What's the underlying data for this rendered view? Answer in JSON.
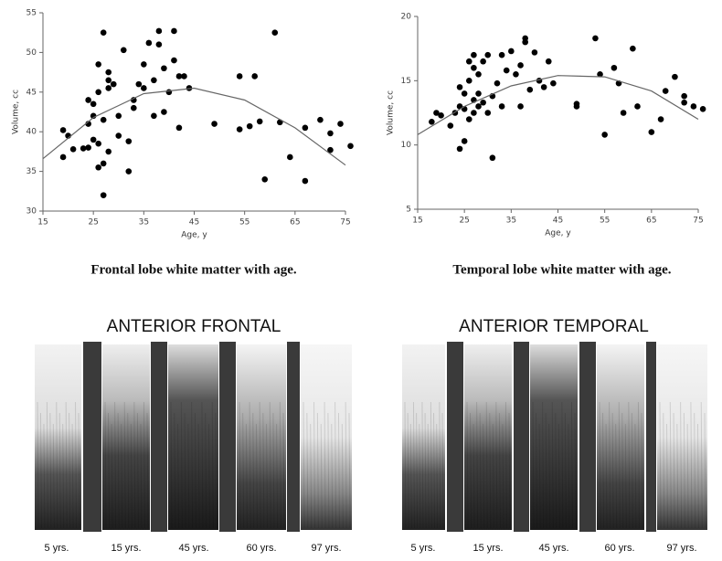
{
  "chart_data": [
    {
      "type": "scatter",
      "caption": "Frontal lobe white matter with age.",
      "x_label": "Age, y",
      "y_label": "Volume, cc",
      "xlim": [
        15,
        75
      ],
      "xticks": [
        15,
        25,
        35,
        45,
        55,
        65,
        75
      ],
      "ylim": [
        30,
        55
      ],
      "yticks": [
        30,
        35,
        40,
        45,
        50,
        55
      ],
      "series": [
        {
          "color": "#000000",
          "x": [
            19,
            19,
            20,
            21,
            23,
            24,
            24,
            24,
            25,
            25,
            25,
            26,
            26,
            26,
            26,
            27,
            27,
            27,
            27,
            28,
            28,
            28,
            28,
            29,
            30,
            30,
            31,
            32,
            32,
            33,
            33,
            34,
            35,
            35,
            36,
            37,
            37,
            38,
            38,
            39,
            39,
            40,
            41,
            41,
            42,
            42,
            43,
            44,
            49,
            54,
            54,
            56,
            57,
            58,
            59,
            61,
            62,
            64,
            67,
            67,
            70,
            72,
            72,
            74,
            76
          ],
          "values": [
            40.2,
            36.8,
            39.5,
            37.8,
            37.9,
            38,
            41,
            44,
            43.5,
            39,
            42,
            48.5,
            45,
            35.5,
            38.5,
            52.5,
            32,
            36,
            41.5,
            47.5,
            46.5,
            45.5,
            37.5,
            46,
            39.5,
            42,
            50.3,
            35,
            38.8,
            43,
            44,
            46,
            45.5,
            48.5,
            51.2,
            42,
            46.5,
            52.7,
            51,
            42.5,
            48,
            45,
            52.7,
            49,
            40.5,
            47,
            47,
            45.5,
            41,
            40.3,
            47,
            40.7,
            47,
            41.3,
            34,
            52.5,
            41.2,
            36.8,
            40.5,
            33.8,
            41.5,
            37.7,
            39.8,
            41,
            38.2
          ]
        },
        {
          "color": "#666666",
          "line": true,
          "x": [
            15,
            25,
            35,
            45,
            55,
            65,
            75
          ],
          "values": [
            36.6,
            41.8,
            44.8,
            45.5,
            44.0,
            40.5,
            35.8
          ]
        }
      ]
    },
    {
      "type": "scatter",
      "caption": "Temporal lobe white matter with age.",
      "x_label": "Age, y",
      "y_label": "Volume, cc",
      "xlim": [
        15,
        75
      ],
      "xticks": [
        15,
        25,
        35,
        45,
        55,
        65,
        75
      ],
      "ylim": [
        5,
        20
      ],
      "yticks": [
        5,
        10,
        15,
        20
      ],
      "series": [
        {
          "color": "#000000",
          "x": [
            18,
            19,
            20,
            22,
            23,
            24,
            24,
            24,
            25,
            25,
            25,
            26,
            26,
            26,
            27,
            27,
            27,
            27,
            28,
            28,
            28,
            29,
            29,
            30,
            30,
            31,
            31,
            32,
            33,
            33,
            34,
            35,
            36,
            37,
            37,
            38,
            38,
            39,
            40,
            41,
            42,
            43,
            44,
            49,
            49,
            53,
            54,
            55,
            57,
            58,
            59,
            61,
            62,
            65,
            67,
            68,
            70,
            72,
            72,
            74,
            76
          ],
          "values": [
            11.8,
            12.5,
            12.3,
            11.5,
            12.5,
            9.7,
            13,
            14.5,
            10.3,
            12.8,
            14,
            12,
            15,
            16.5,
            13.5,
            12.5,
            16,
            17,
            13,
            15.5,
            14,
            13.3,
            16.5,
            12.5,
            17,
            9,
            13.8,
            14.8,
            17,
            13,
            15.8,
            17.3,
            15.5,
            16.2,
            13,
            18.3,
            18,
            14.3,
            17.2,
            15,
            14.5,
            16.5,
            14.8,
            13.2,
            13,
            18.3,
            15.5,
            10.8,
            16,
            14.8,
            12.5,
            17.5,
            13,
            11,
            12,
            14.2,
            15.3,
            13.8,
            13.3,
            13,
            12.8
          ]
        },
        {
          "color": "#666666",
          "line": true,
          "x": [
            15,
            25,
            35,
            45,
            55,
            65,
            75
          ],
          "values": [
            10.8,
            13.0,
            14.6,
            15.4,
            15.3,
            14.2,
            12.0
          ]
        }
      ]
    }
  ],
  "panels": [
    {
      "title": "ANTERIOR FRONTAL",
      "labels": [
        "5 yrs.",
        "15 yrs.",
        "45 yrs.",
        "60 yrs.",
        "97 yrs."
      ]
    },
    {
      "title": "ANTERIOR TEMPORAL",
      "labels": [
        "5 yrs.",
        "15 yrs.",
        "45 yrs.",
        "60 yrs.",
        "97 yrs."
      ]
    }
  ]
}
